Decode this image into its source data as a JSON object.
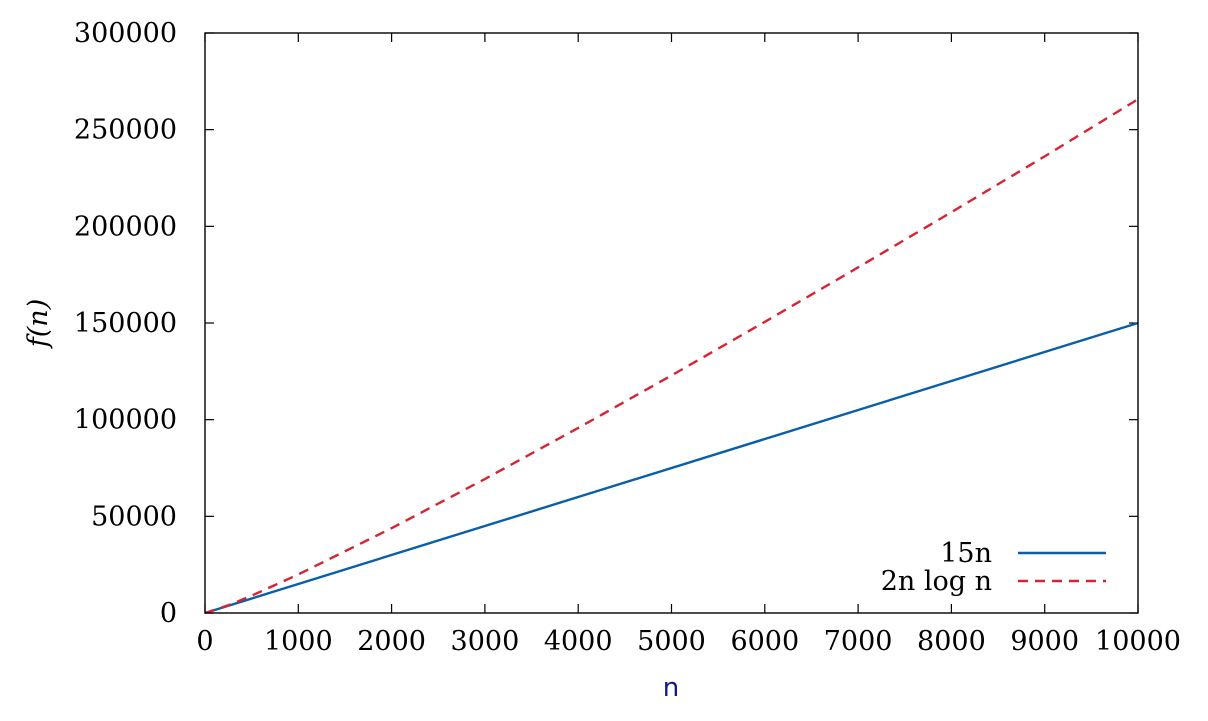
{
  "chart_data": {
    "type": "line",
    "title": "",
    "xlabel": "n",
    "ylabel": "f(n)",
    "xlim": [
      0,
      10000
    ],
    "ylim": [
      0,
      300000
    ],
    "xticks": [
      0,
      1000,
      2000,
      3000,
      4000,
      5000,
      6000,
      7000,
      8000,
      9000,
      10000
    ],
    "yticks": [
      0,
      50000,
      100000,
      150000,
      200000,
      250000,
      300000
    ],
    "grid": false,
    "legend_position": "bottom-right",
    "series": [
      {
        "name": "15n",
        "color": "#0a5fa8",
        "style": "solid",
        "x": [
          0,
          10000
        ],
        "y": [
          0,
          150000
        ]
      },
      {
        "name": "2n log n",
        "color": "#d62433",
        "style": "dashed",
        "x": [
          0,
          250,
          500,
          1000,
          2000,
          3000,
          4000,
          5000,
          6000,
          7000,
          8000,
          9000,
          10000
        ],
        "y": [
          0,
          3983,
          8966,
          19932,
          43863,
          69297,
          95726,
          122877,
          150589,
          178760,
          207315,
          236200,
          265754
        ]
      }
    ]
  }
}
